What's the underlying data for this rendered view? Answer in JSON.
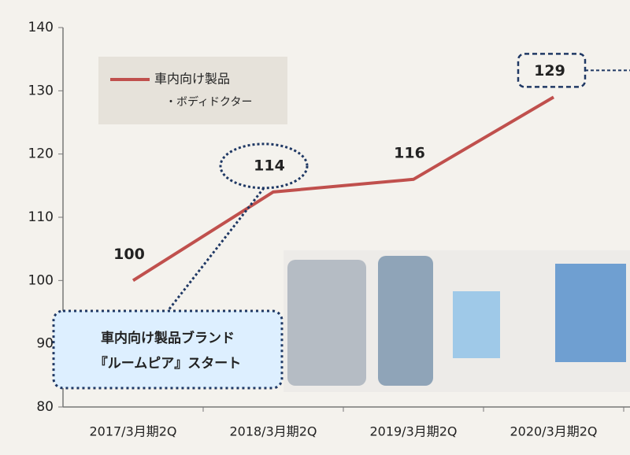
{
  "chart_data": {
    "type": "line",
    "categories": [
      "2017/3月期2Q",
      "2018/3月期2Q",
      "2019/3月期2Q",
      "2020/3月期2Q"
    ],
    "series": [
      {
        "name": "車内向け製品",
        "color": "#c0504d",
        "values": [
          100,
          114,
          116,
          129
        ]
      }
    ],
    "legend_note": "・ボディドクター",
    "annotation": [
      "車内向け製品ブランド",
      "『ルームピア』スタート"
    ],
    "ylim": [
      80,
      140
    ],
    "yticks": [
      80,
      90,
      100,
      110,
      120,
      130,
      140
    ],
    "grid": false
  }
}
